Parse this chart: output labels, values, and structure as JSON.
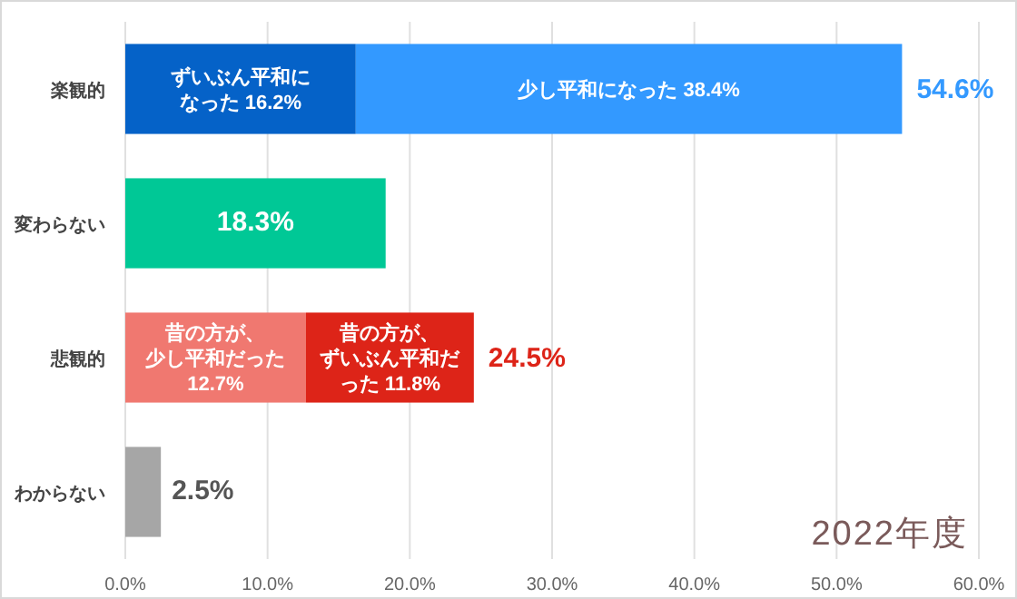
{
  "chart_data": {
    "type": "bar",
    "orientation": "horizontal",
    "stacked": true,
    "categories": [
      "楽観的",
      "変わらない",
      "悲観的",
      "わからない"
    ],
    "series": [
      {
        "colors": [
          "#0562c8",
          "#00c896",
          "#f07870",
          "#a6a6a6"
        ],
        "values": [
          16.2,
          18.3,
          12.7,
          2.5
        ],
        "value_labels": [
          "ずいぶん平和になった 16.2%",
          "18.3%",
          "昔の方が、少し平和だった 12.7%",
          "2.5%"
        ]
      },
      {
        "colors": [
          "#3399ff",
          null,
          "#dd2418",
          null
        ],
        "values": [
          38.4,
          null,
          11.8,
          null
        ],
        "value_labels": [
          "少し平和になった 38.4%",
          null,
          "昔の方が、ずいぶん平和だった 11.8%",
          null
        ]
      }
    ],
    "totals": [
      "54.6%",
      null,
      "24.5%",
      null
    ],
    "xlim": [
      0,
      60
    ],
    "xticks": [
      {
        "value": 0,
        "label": "0.0%"
      },
      {
        "value": 10,
        "label": "10.0%"
      },
      {
        "value": 20,
        "label": "20.0%"
      },
      {
        "value": 30,
        "label": "30.0%"
      },
      {
        "value": 40,
        "label": "40.0%"
      },
      {
        "value": 50,
        "label": "50.0%"
      },
      {
        "value": 60,
        "label": "60.0%"
      }
    ],
    "grid": "x",
    "annotations": [
      "2022年度"
    ]
  }
}
